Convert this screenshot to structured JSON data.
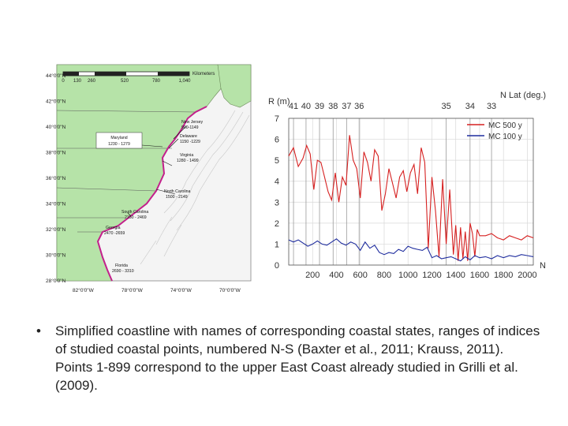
{
  "map": {
    "lat_labels": [
      "44°0'0\"N",
      "42°0'0\"N",
      "40°0'0\"N",
      "38°0'0\"N",
      "36°0'0\"N",
      "34°0'0\"N",
      "32°0'0\"N",
      "30°0'0\"N",
      "28°0'0\"N"
    ],
    "lon_labels": [
      "82°0'0\"W",
      "78°0'0\"W",
      "74°0'0\"W",
      "70°0'0\"W"
    ],
    "scale_ticks": [
      "0",
      "130",
      "260",
      "520",
      "780",
      "1,040"
    ],
    "scale_unit": "Kilometers",
    "states": [
      {
        "name": "New Jersey",
        "range": "900-1149"
      },
      {
        "name": "Delaware",
        "range": "1150 -1229"
      },
      {
        "name": "Maryland",
        "range": "1230 - 1279"
      },
      {
        "name": "Virginia",
        "range": "1280 - 1499"
      },
      {
        "name": "North Carolina",
        "range": "1500 - 2149"
      },
      {
        "name": "South Carolina",
        "range": "2150 - 2469"
      },
      {
        "name": "Georgia",
        "range": "2470 -2659"
      },
      {
        "name": "Florida",
        "range": "2690 - 3310"
      }
    ],
    "colors": {
      "ocean": "#f4f4f4",
      "land": "#b6e3a8",
      "coast": "#c3208c"
    }
  },
  "chart_data": {
    "type": "line",
    "ylabel": "R (m)",
    "xlabel": "N",
    "top_axis_label": "N Lat (deg.)",
    "top_ticks": [
      {
        "label": "41",
        "x": 40
      },
      {
        "label": "40",
        "x": 145
      },
      {
        "label": "39",
        "x": 258
      },
      {
        "label": "38",
        "x": 372
      },
      {
        "label": "37",
        "x": 485
      },
      {
        "label": "36",
        "x": 590
      },
      {
        "label": "35",
        "x": 1320
      },
      {
        "label": "34",
        "x": 1520
      },
      {
        "label": "33",
        "x": 1700
      }
    ],
    "xlim": [
      0,
      2050
    ],
    "ylim": [
      0,
      7
    ],
    "xticks": [
      200,
      400,
      600,
      800,
      1000,
      1200,
      1400,
      1600,
      1800,
      2000
    ],
    "yticks": [
      0,
      1,
      2,
      3,
      4,
      5,
      6,
      7
    ],
    "legend_position": "top-right",
    "colors": {
      "series1": "#d62020",
      "series2": "#1f2d9e"
    },
    "series": [
      {
        "name": "MC 500 y",
        "x": [
          0,
          40,
          80,
          120,
          150,
          180,
          210,
          240,
          270,
          300,
          330,
          360,
          390,
          420,
          450,
          480,
          510,
          540,
          570,
          600,
          630,
          660,
          690,
          720,
          750,
          780,
          810,
          840,
          870,
          900,
          930,
          960,
          990,
          1020,
          1050,
          1080,
          1110,
          1140,
          1170,
          1200,
          1230,
          1260,
          1290,
          1320,
          1350,
          1380,
          1400,
          1420,
          1440,
          1460,
          1480,
          1500,
          1520,
          1540,
          1560,
          1580,
          1600,
          1650,
          1700,
          1750,
          1800,
          1850,
          1900,
          1950,
          2000,
          2050
        ],
        "y": [
          5.2,
          5.6,
          4.7,
          5.1,
          5.7,
          5.3,
          3.6,
          5.0,
          4.9,
          4.2,
          3.5,
          3.1,
          4.4,
          3.0,
          4.2,
          3.8,
          6.2,
          5.0,
          4.6,
          3.2,
          5.4,
          4.9,
          4.0,
          5.5,
          5.2,
          2.6,
          3.4,
          4.6,
          3.9,
          3.2,
          4.2,
          4.5,
          3.5,
          4.4,
          4.8,
          3.4,
          5.6,
          4.9,
          0.8,
          4.2,
          2.6,
          0.4,
          4.1,
          1.0,
          3.6,
          0.5,
          1.9,
          0.2,
          1.8,
          0.3,
          1.6,
          0.2,
          2.0,
          1.5,
          0.4,
          1.7,
          1.4,
          1.4,
          1.5,
          1.3,
          1.2,
          1.4,
          1.3,
          1.2,
          1.4,
          1.3
        ]
      },
      {
        "name": "MC 100 y",
        "x": [
          0,
          40,
          80,
          120,
          160,
          200,
          240,
          280,
          320,
          360,
          400,
          440,
          480,
          520,
          560,
          600,
          640,
          680,
          720,
          760,
          800,
          840,
          880,
          920,
          960,
          1000,
          1040,
          1080,
          1120,
          1160,
          1200,
          1240,
          1280,
          1320,
          1360,
          1400,
          1440,
          1480,
          1520,
          1560,
          1600,
          1650,
          1700,
          1750,
          1800,
          1850,
          1900,
          1950,
          2000,
          2050
        ],
        "y": [
          1.2,
          1.1,
          1.2,
          1.05,
          0.9,
          1.0,
          1.15,
          1.0,
          0.95,
          1.1,
          1.25,
          1.05,
          0.95,
          1.1,
          1.0,
          0.7,
          1.1,
          0.8,
          0.95,
          0.6,
          0.5,
          0.6,
          0.55,
          0.75,
          0.65,
          0.9,
          0.8,
          0.75,
          0.7,
          0.85,
          0.35,
          0.45,
          0.3,
          0.35,
          0.4,
          0.3,
          0.2,
          0.4,
          0.25,
          0.45,
          0.35,
          0.4,
          0.3,
          0.45,
          0.35,
          0.45,
          0.4,
          0.5,
          0.45,
          0.4
        ]
      }
    ]
  },
  "caption": {
    "bullet": "•",
    "text": "Simplified coastline with names of corresponding coastal states, ranges of indices of studied coastal points, numbered N-S (Baxter et al., 2011; Krauss, 2011). Points 1-899 correspond to the upper East Coast already studied in Grilli et al. (2009)."
  }
}
